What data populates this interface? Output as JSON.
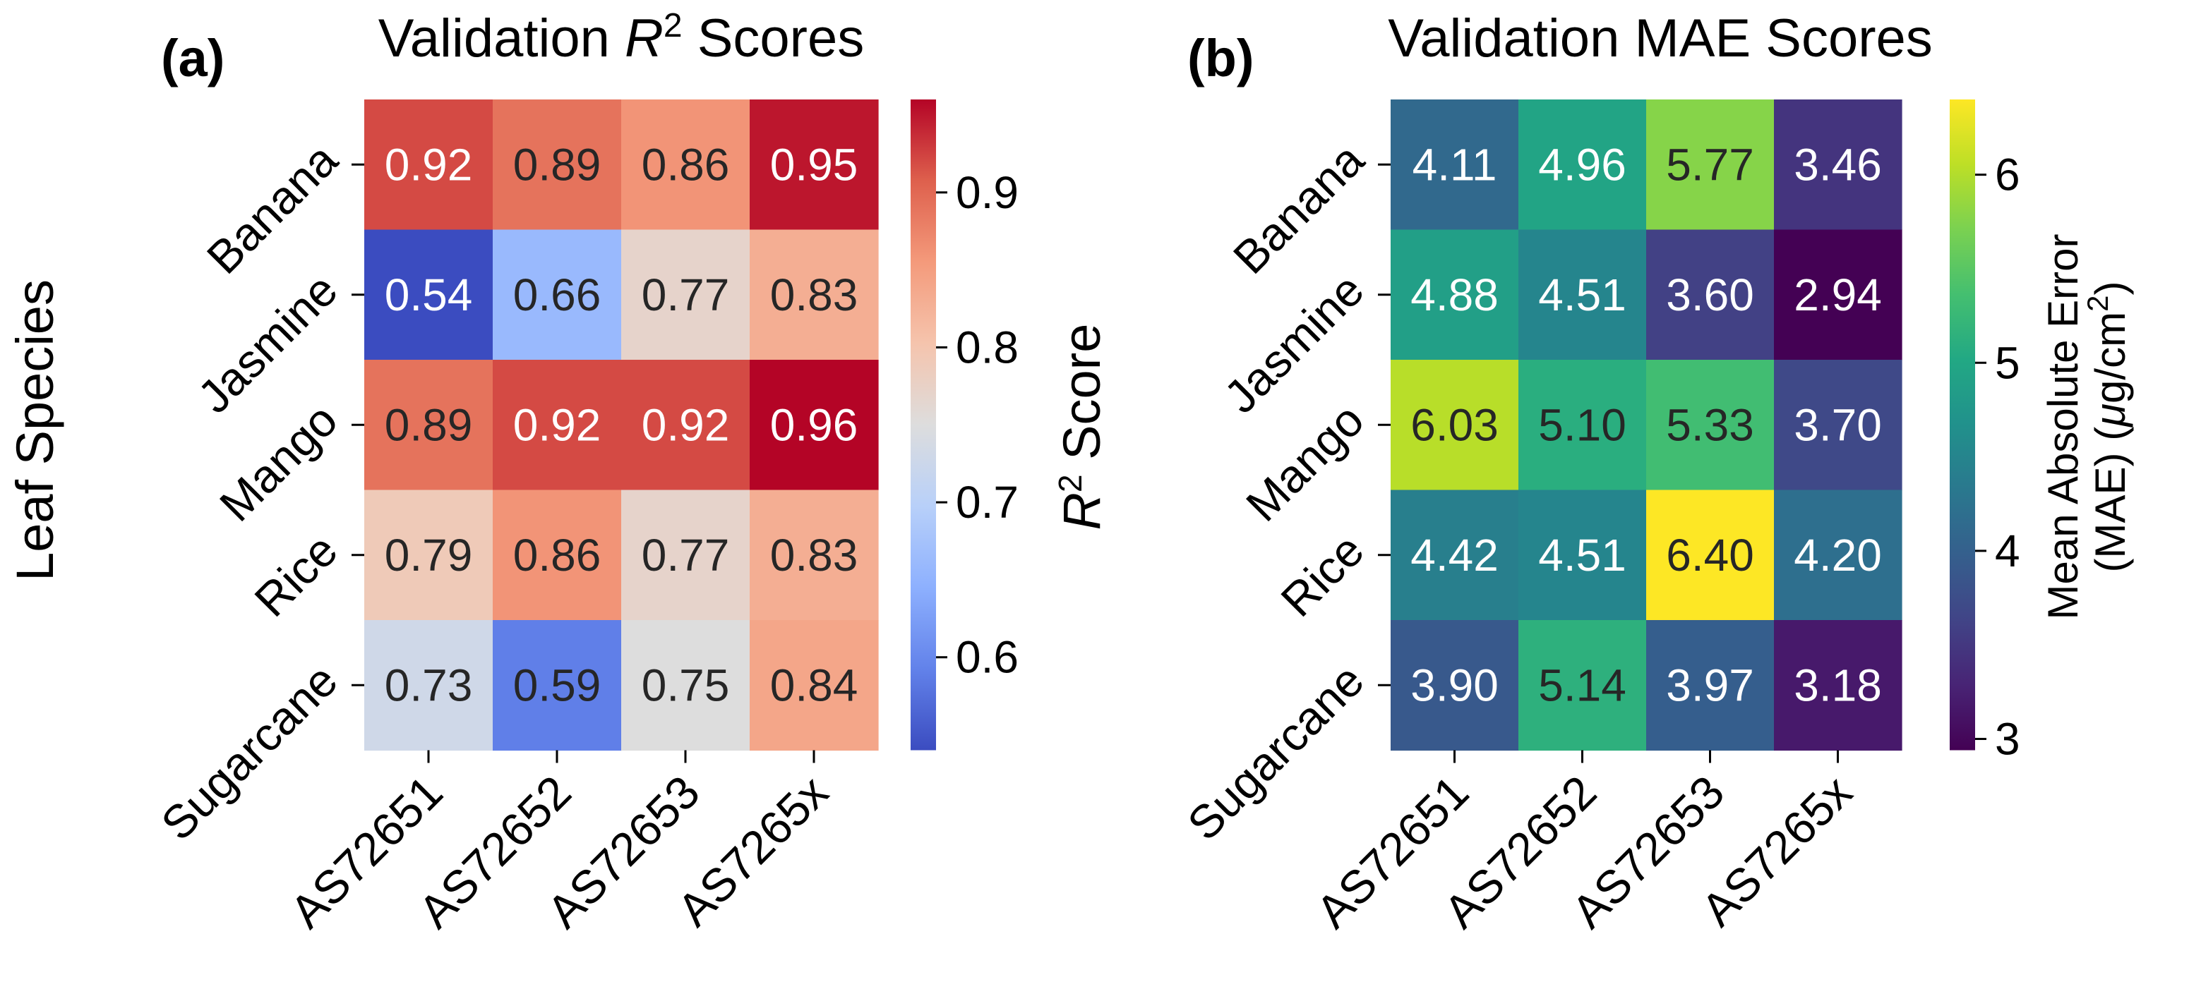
{
  "figure": {
    "ylabel": "Leaf Species",
    "rows": [
      "Banana",
      "Jasmine",
      "Mango",
      "Rice",
      "Sugarcane"
    ],
    "columns": [
      "AS72651",
      "AS72652",
      "AS72653",
      "AS7265x"
    ]
  },
  "panels": [
    {
      "label": "(a)",
      "title_prefix": "Validation ",
      "title_var": "R",
      "title_sup": "2",
      "title_suffix": " Scores",
      "colorbar": {
        "label_var": "R",
        "label_sup": "2",
        "label_suffix": " Score",
        "ticks": [
          "0.6",
          "0.7",
          "0.8",
          "0.9"
        ]
      }
    },
    {
      "label": "(b)",
      "title": "Validation MAE Scores",
      "colorbar": {
        "label_line1": "Mean Absolute Error",
        "label_line2_prefix": "(MAE) (",
        "label_line2_mu": "μ",
        "label_line2_unit": "g/cm",
        "label_line2_sup": "2",
        "label_line2_suffix": ")",
        "ticks": [
          "3",
          "4",
          "5",
          "6"
        ]
      }
    }
  ],
  "chart_data": [
    {
      "type": "heatmap",
      "title": "Validation R^2 Scores",
      "xlabel": "",
      "ylabel": "Leaf Species",
      "x": [
        "AS72651",
        "AS72652",
        "AS72653",
        "AS7265x"
      ],
      "y": [
        "Banana",
        "Jasmine",
        "Mango",
        "Rice",
        "Sugarcane"
      ],
      "values": [
        [
          0.92,
          0.89,
          0.86,
          0.95
        ],
        [
          0.54,
          0.66,
          0.77,
          0.83
        ],
        [
          0.89,
          0.92,
          0.92,
          0.96
        ],
        [
          0.79,
          0.86,
          0.77,
          0.83
        ],
        [
          0.73,
          0.59,
          0.75,
          0.84
        ]
      ],
      "labels": [
        [
          "0.92",
          "0.89",
          "0.86",
          "0.95"
        ],
        [
          "0.54",
          "0.66",
          "0.77",
          "0.83"
        ],
        [
          "0.89",
          "0.92",
          "0.92",
          "0.96"
        ],
        [
          "0.79",
          "0.86",
          "0.77",
          "0.83"
        ],
        [
          "0.73",
          "0.59",
          "0.75",
          "0.84"
        ]
      ],
      "colormap": "coolwarm",
      "vmin": 0.54,
      "vmax": 0.96,
      "colorbar_ticks": [
        0.6,
        0.7,
        0.8,
        0.9
      ],
      "colorbar_label": "R^2 Score"
    },
    {
      "type": "heatmap",
      "title": "Validation MAE Scores",
      "xlabel": "",
      "ylabel": "",
      "x": [
        "AS72651",
        "AS72652",
        "AS72653",
        "AS7265x"
      ],
      "y": [
        "Banana",
        "Jasmine",
        "Mango",
        "Rice",
        "Sugarcane"
      ],
      "values": [
        [
          4.11,
          4.96,
          5.77,
          3.46
        ],
        [
          4.88,
          4.51,
          3.6,
          2.94
        ],
        [
          6.03,
          5.1,
          5.33,
          3.7
        ],
        [
          4.42,
          4.51,
          6.4,
          4.2
        ],
        [
          3.9,
          5.14,
          3.97,
          3.18
        ]
      ],
      "labels": [
        [
          "4.11",
          "4.96",
          "5.77",
          "3.46"
        ],
        [
          "4.88",
          "4.51",
          "3.60",
          "2.94"
        ],
        [
          "6.03",
          "5.10",
          "5.33",
          "3.70"
        ],
        [
          "4.42",
          "4.51",
          "6.40",
          "4.20"
        ],
        [
          "3.90",
          "5.14",
          "3.97",
          "3.18"
        ]
      ],
      "colormap": "viridis",
      "vmin": 2.94,
      "vmax": 6.4,
      "colorbar_ticks": [
        3,
        4,
        5,
        6
      ],
      "colorbar_label": "Mean Absolute Error (MAE) (μg/cm^2)"
    }
  ]
}
